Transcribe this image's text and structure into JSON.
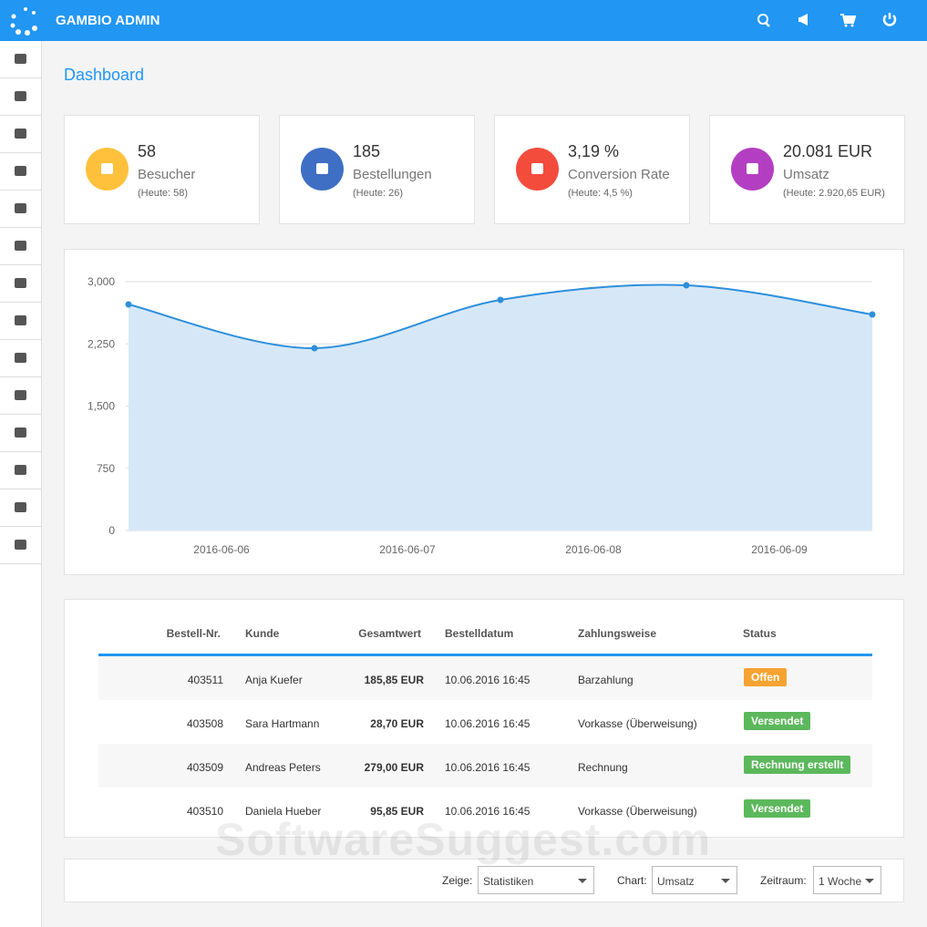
{
  "header": {
    "title": "GAMBIO ADMIN"
  },
  "page": {
    "title": "Dashboard"
  },
  "stats": [
    {
      "value": "58",
      "label": "Besucher",
      "sub": "(Heute: 58)"
    },
    {
      "value": "185",
      "label": "Bestellungen",
      "sub": "(Heute: 26)"
    },
    {
      "value": "3,19 %",
      "label": "Conversion Rate",
      "sub": "(Heute: 4,5 %)"
    },
    {
      "value": "20.081 EUR",
      "label": "Umsatz",
      "sub": "(Heute: 2.920,65 EUR)"
    }
  ],
  "chart_data": {
    "type": "area",
    "color": "#2d8fdc",
    "fill": "#d6e8f8",
    "categories": [
      "2016-06-06",
      "2016-06-07",
      "2016-06-08",
      "2016-06-09",
      null
    ],
    "values": [
      2725,
      2198,
      2780,
      2956,
      2604
    ],
    "ylim": [
      0,
      3000
    ],
    "yticks": [
      0,
      750,
      {
        "value": 1500,
        "label": "1,500"
      },
      {
        "value": 2250,
        "label": "2,250"
      },
      {
        "value": 3000,
        "label": "3,000"
      }
    ],
    "grid": true
  },
  "table": {
    "columns": [
      "Bestell-Nr.",
      "Kunde",
      "Gesamtwert",
      "Bestelldatum",
      "Zahlungsweise",
      "Status"
    ],
    "rows": [
      [
        "403511",
        "Anja Kuefer",
        "185,85 EUR",
        "10.06.2016 16:45",
        "Barzahlung",
        "Offen"
      ],
      [
        "403508",
        "Sara Hartmann",
        "28,70 EUR",
        "10.06.2016 16:45",
        "Vorkasse (Überweisung)",
        "Versendet"
      ],
      [
        "403509",
        "Andreas Peters",
        "279,00 EUR",
        "10.06.2016 16:45",
        "Rechnung",
        "Rechnung erstellt"
      ],
      [
        "403510",
        "Daniela Hueber",
        "95,85 EUR",
        "10.06.2016 16:45",
        "Vorkasse (Überweisung)",
        "Versendet"
      ]
    ]
  },
  "controls": [
    {
      "label": "Zeige:",
      "value": "Statistiken"
    },
    {
      "label": "Chart:",
      "value": "Umsatz"
    },
    {
      "label": "Zeitraum:",
      "value": "1 Woche"
    }
  ],
  "watermark": "SoftwareSuggest.com"
}
